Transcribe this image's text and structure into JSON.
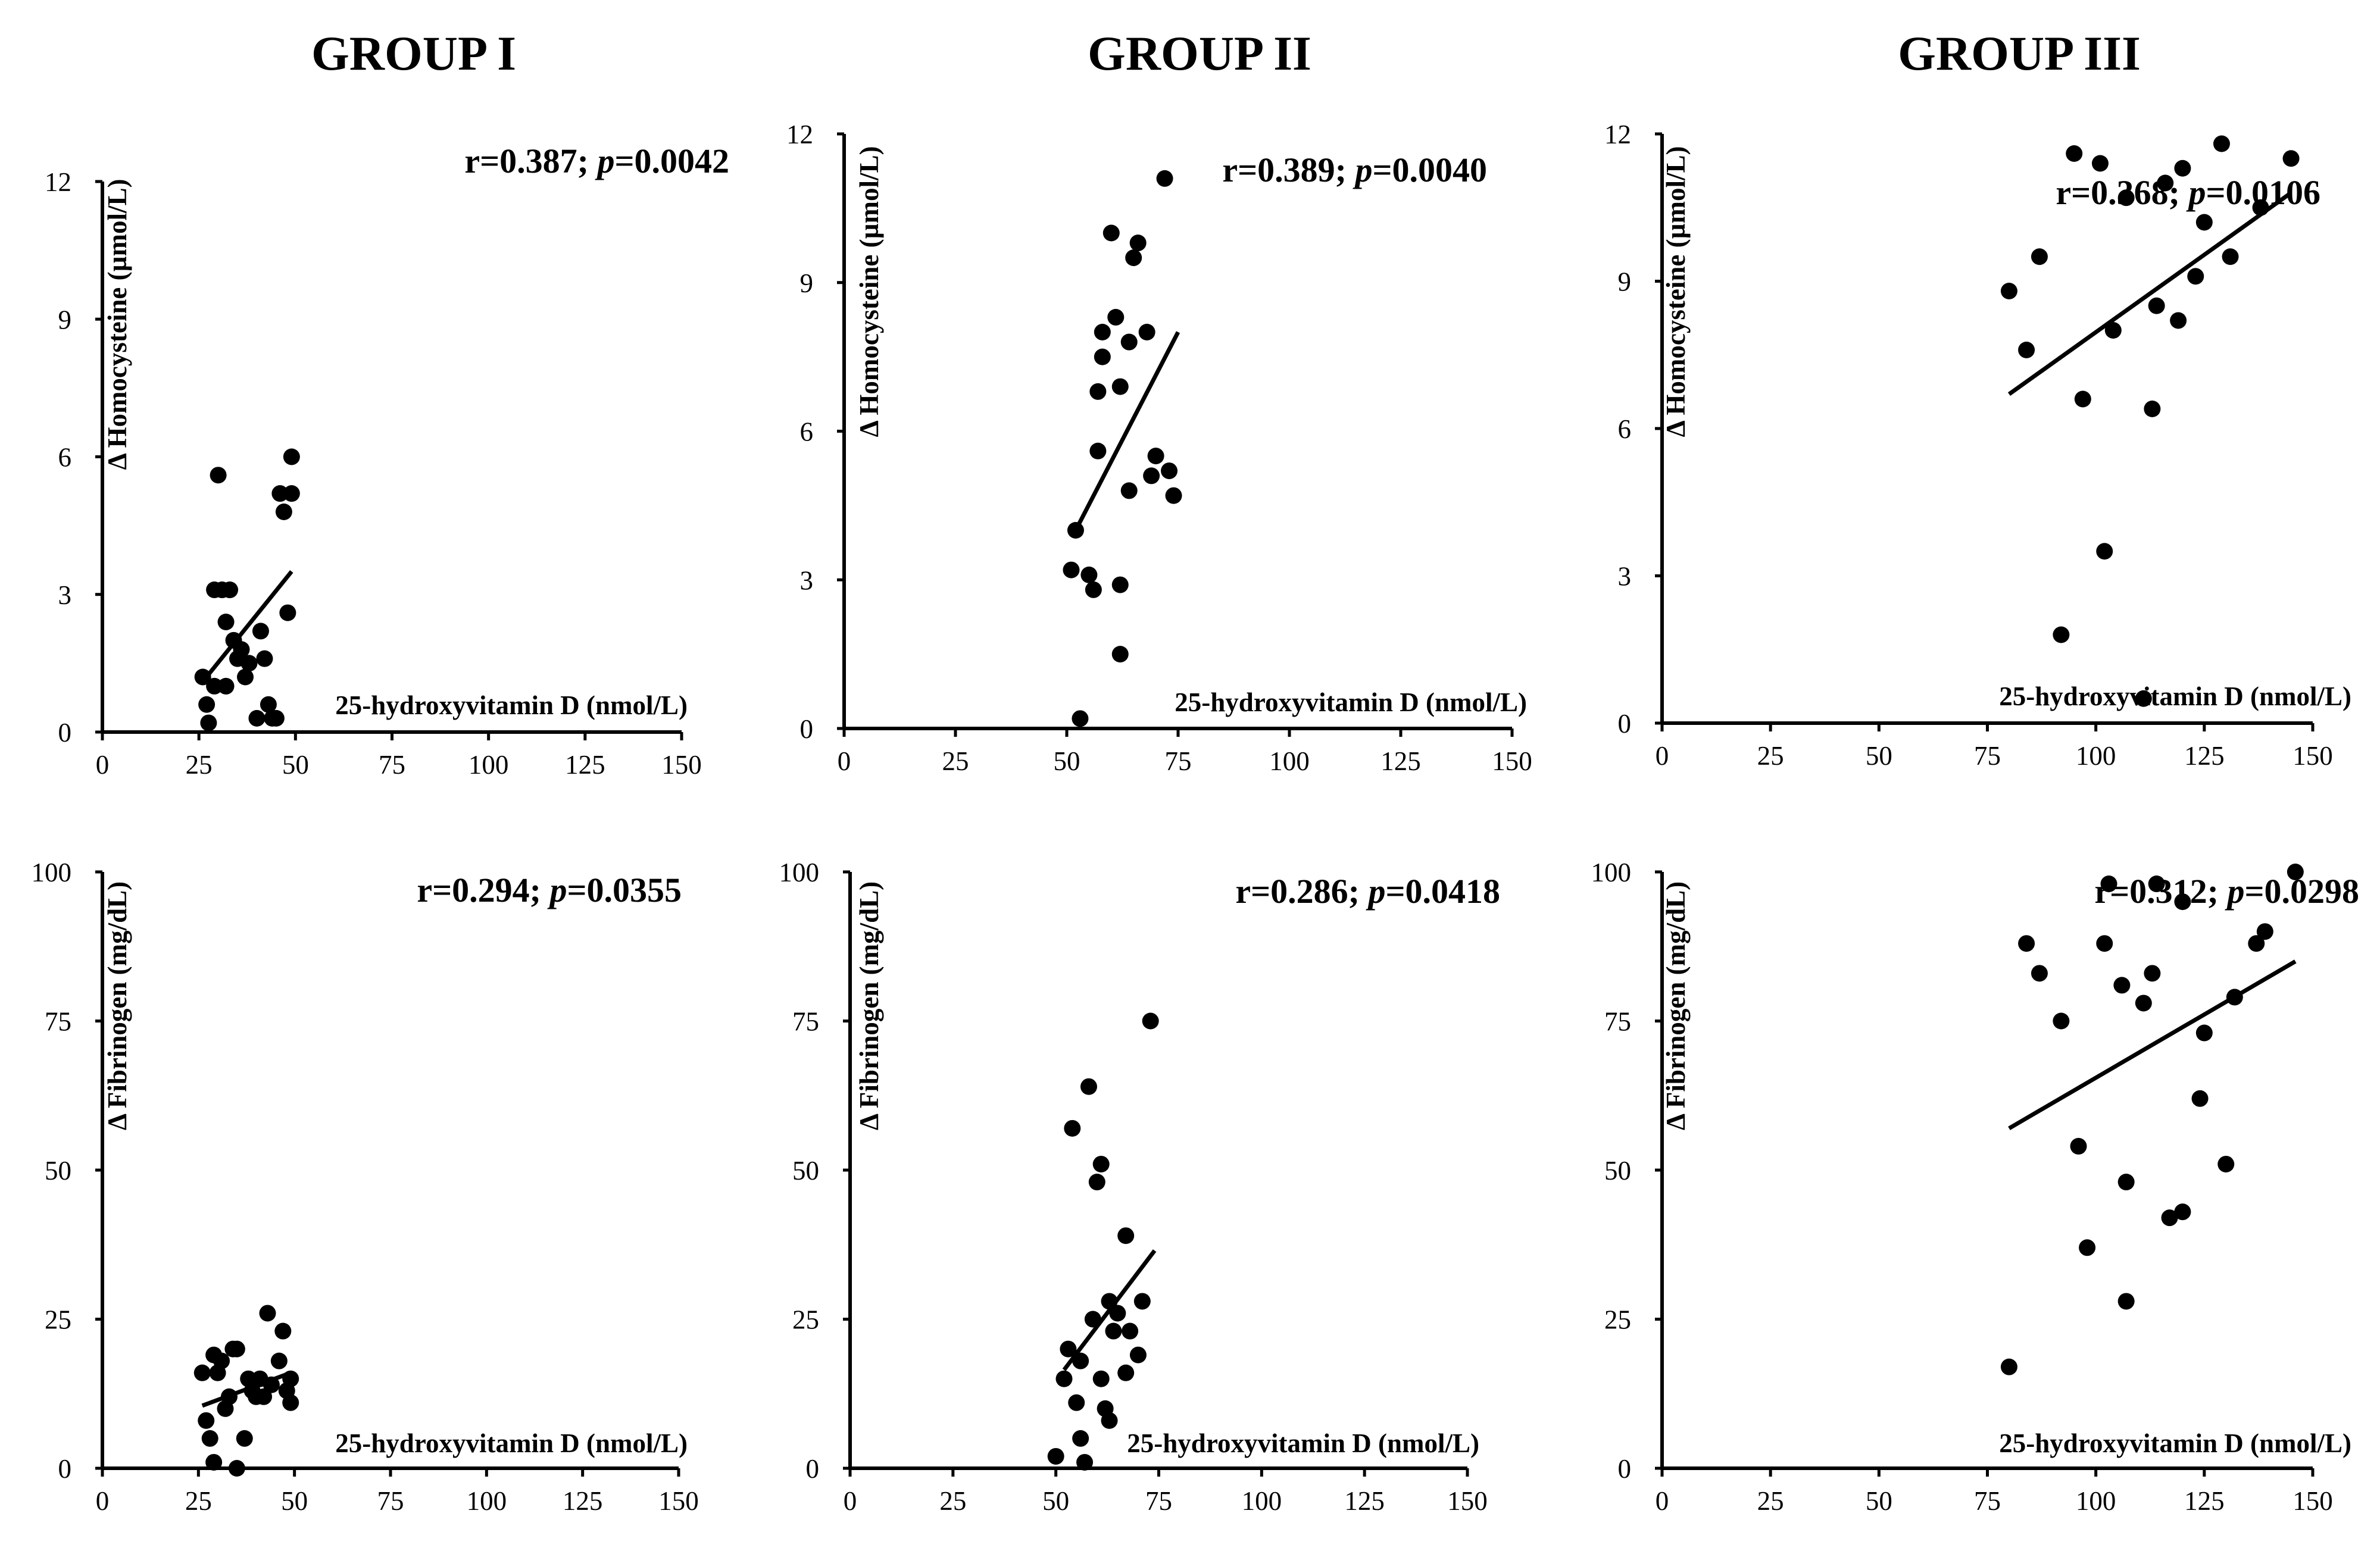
{
  "figure": {
    "group_titles": [
      "GROUP I",
      "GROUP II",
      "GROUP III"
    ],
    "colors": {
      "points": "#000000",
      "axes": "#000000",
      "background": "#ffffff"
    }
  },
  "chart_data": [
    {
      "id": "g1-homocysteine",
      "type": "scatter",
      "title": "GROUP I",
      "xlabel": "25-hydroxyvitamin D (nmol/L)",
      "ylabel": "Δ  Homocysteine (µmol/L)",
      "xlim": [
        0,
        150
      ],
      "ylim": [
        0,
        12
      ],
      "xticks": [
        "0",
        "25",
        "50",
        "75",
        "100",
        "125",
        "150"
      ],
      "yticks": [
        "0",
        "3",
        "6",
        "9",
        "12"
      ],
      "annotation": {
        "r": "r=0.387;",
        "p_label": "p",
        "p_value": "=0.0042"
      },
      "trendline": {
        "x": [
          26,
          49
        ],
        "y": [
          1.1,
          3.5
        ]
      },
      "points": [
        [
          26,
          1.2
        ],
        [
          27,
          0.6
        ],
        [
          27.5,
          0.2
        ],
        [
          29,
          1.0
        ],
        [
          29,
          3.1
        ],
        [
          30,
          5.6
        ],
        [
          31,
          3.1
        ],
        [
          32,
          2.4
        ],
        [
          32,
          1.0
        ],
        [
          33,
          3.1
        ],
        [
          34,
          2.0
        ],
        [
          35,
          1.6
        ],
        [
          36,
          1.8
        ],
        [
          37,
          1.2
        ],
        [
          38,
          1.5
        ],
        [
          40,
          0.3
        ],
        [
          41,
          2.2
        ],
        [
          42,
          1.6
        ],
        [
          43,
          0.6
        ],
        [
          44,
          0.3
        ],
        [
          45,
          0.3
        ],
        [
          46,
          5.2
        ],
        [
          47,
          4.8
        ],
        [
          48,
          2.6
        ],
        [
          49,
          5.2
        ],
        [
          49,
          6.0
        ]
      ]
    },
    {
      "id": "g2-homocysteine",
      "type": "scatter",
      "title": "GROUP II",
      "xlabel": "25-hydroxyvitamin D (nmol/L)",
      "ylabel": "Δ  Homocysteine (µmol/L)",
      "xlim": [
        0,
        150
      ],
      "ylim": [
        0,
        12
      ],
      "xticks": [
        "0",
        "25",
        "50",
        "75",
        "100",
        "125",
        "150"
      ],
      "yticks": [
        "0",
        "3",
        "6",
        "9",
        "12"
      ],
      "annotation": {
        "r": "r=0.389;",
        "p_label": "p",
        "p_value": "=0.0040"
      },
      "trendline": {
        "x": [
          52,
          75
        ],
        "y": [
          4.0,
          8.0
        ]
      },
      "points": [
        [
          51,
          3.2
        ],
        [
          52,
          4.0
        ],
        [
          53,
          0.2
        ],
        [
          55,
          3.1
        ],
        [
          56,
          2.8
        ],
        [
          57,
          5.6
        ],
        [
          57,
          6.8
        ],
        [
          58,
          7.5
        ],
        [
          58,
          8.0
        ],
        [
          60,
          10.0
        ],
        [
          61,
          8.3
        ],
        [
          62,
          6.9
        ],
        [
          62,
          1.5
        ],
        [
          62,
          2.9
        ],
        [
          64,
          7.8
        ],
        [
          64,
          4.8
        ],
        [
          65,
          9.5
        ],
        [
          66,
          9.8
        ],
        [
          68,
          8.0
        ],
        [
          69,
          5.1
        ],
        [
          70,
          5.5
        ],
        [
          72,
          11.1
        ],
        [
          73,
          5.2
        ],
        [
          74,
          4.7
        ]
      ]
    },
    {
      "id": "g3-homocysteine",
      "type": "scatter",
      "title": "GROUP III",
      "xlabel": "25-hydroxyvitamin D (nmol/L)",
      "ylabel": "Δ  Homocysteine (µmol/L)",
      "xlim": [
        0,
        150
      ],
      "ylim": [
        0,
        12
      ],
      "xticks": [
        "0",
        "25",
        "50",
        "75",
        "100",
        "125",
        "150"
      ],
      "yticks": [
        "0",
        "3",
        "6",
        "9",
        "12"
      ],
      "annotation": {
        "r": "r=0.368;",
        "p_label": "p",
        "p_value": "=0.0106"
      },
      "trendline": {
        "x": [
          80,
          145
        ],
        "y": [
          6.7,
          10.8
        ]
      },
      "points": [
        [
          80,
          8.8
        ],
        [
          84,
          7.6
        ],
        [
          87,
          9.5
        ],
        [
          92,
          1.8
        ],
        [
          95,
          11.6
        ],
        [
          97,
          6.6
        ],
        [
          101,
          11.4
        ],
        [
          102,
          3.5
        ],
        [
          104,
          8.0
        ],
        [
          107,
          10.7
        ],
        [
          111,
          0.5
        ],
        [
          113,
          6.4
        ],
        [
          114,
          8.5
        ],
        [
          116,
          11.0
        ],
        [
          119,
          8.2
        ],
        [
          120,
          11.3
        ],
        [
          123,
          9.1
        ],
        [
          125,
          10.2
        ],
        [
          129,
          11.8
        ],
        [
          131,
          9.5
        ],
        [
          138,
          10.5
        ],
        [
          145,
          11.5
        ]
      ]
    },
    {
      "id": "g1-fibrinogen",
      "type": "scatter",
      "title": "",
      "xlabel": "25-hydroxyvitamin D (nmol/L)",
      "ylabel": "Δ  Fibrinogen (mg/dL)",
      "xlim": [
        0,
        150
      ],
      "ylim": [
        0,
        100
      ],
      "xticks": [
        "0",
        "25",
        "50",
        "75",
        "100",
        "125",
        "150"
      ],
      "yticks": [
        "0",
        "25",
        "50",
        "75",
        "100"
      ],
      "annotation": {
        "r": "r=0.294;",
        "p_label": "p",
        "p_value": "=0.0355"
      },
      "trendline": {
        "x": [
          26,
          49
        ],
        "y": [
          10.5,
          16.0
        ]
      },
      "points": [
        [
          26,
          16
        ],
        [
          27,
          8
        ],
        [
          28,
          5
        ],
        [
          29,
          19
        ],
        [
          29,
          1
        ],
        [
          30,
          16
        ],
        [
          31,
          18
        ],
        [
          32,
          10
        ],
        [
          33,
          12
        ],
        [
          34,
          20
        ],
        [
          35,
          20
        ],
        [
          35,
          0
        ],
        [
          37,
          5
        ],
        [
          38,
          15
        ],
        [
          39,
          13
        ],
        [
          40,
          12
        ],
        [
          41,
          15
        ],
        [
          42,
          12
        ],
        [
          43,
          26
        ],
        [
          44,
          14
        ],
        [
          46,
          18
        ],
        [
          47,
          23
        ],
        [
          48,
          13
        ],
        [
          49,
          11
        ],
        [
          49,
          15
        ]
      ]
    },
    {
      "id": "g2-fibrinogen",
      "type": "scatter",
      "title": "",
      "xlabel": "25-hydroxyvitamin D (nmol/L)",
      "ylabel": "Δ  Fibrinogen (mg/dL)",
      "xlim": [
        0,
        150
      ],
      "ylim": [
        0,
        100
      ],
      "xticks": [
        "0",
        "25",
        "50",
        "75",
        "100",
        "125",
        "150"
      ],
      "yticks": [
        "0",
        "25",
        "50",
        "75",
        "100"
      ],
      "annotation": {
        "r": "r=0.286;",
        "p_label": "p",
        "p_value": "=0.0418"
      },
      "trendline": {
        "x": [
          52,
          74
        ],
        "y": [
          16.5,
          36.5
        ]
      },
      "points": [
        [
          50,
          2
        ],
        [
          52,
          15
        ],
        [
          53,
          20
        ],
        [
          54,
          57
        ],
        [
          55,
          11
        ],
        [
          56,
          5
        ],
        [
          56,
          18
        ],
        [
          57,
          1
        ],
        [
          58,
          64
        ],
        [
          59,
          25
        ],
        [
          60,
          48
        ],
        [
          61,
          51
        ],
        [
          61,
          15
        ],
        [
          62,
          10
        ],
        [
          63,
          8
        ],
        [
          63,
          28
        ],
        [
          64,
          23
        ],
        [
          65,
          26
        ],
        [
          67,
          39
        ],
        [
          67,
          16
        ],
        [
          68,
          23
        ],
        [
          70,
          19
        ],
        [
          71,
          28
        ],
        [
          73,
          75
        ]
      ]
    },
    {
      "id": "g3-fibrinogen",
      "type": "scatter",
      "title": "",
      "xlabel": "25-hydroxyvitamin D (nmol/L)",
      "ylabel": "Δ  Fibrinogen (mg/dL)",
      "xlim": [
        0,
        150
      ],
      "ylim": [
        0,
        100
      ],
      "xticks": [
        "0",
        "25",
        "50",
        "75",
        "100",
        "125",
        "150"
      ],
      "yticks": [
        "0",
        "25",
        "50",
        "75",
        "100"
      ],
      "annotation": {
        "r": "r=0.312;",
        "p_label": "p",
        "p_value": "=0.0298"
      },
      "trendline": {
        "x": [
          80,
          146
        ],
        "y": [
          57,
          85
        ]
      },
      "points": [
        [
          80,
          17
        ],
        [
          84,
          88
        ],
        [
          87,
          83
        ],
        [
          92,
          75
        ],
        [
          96,
          54
        ],
        [
          98,
          37
        ],
        [
          102,
          88
        ],
        [
          103,
          98
        ],
        [
          106,
          81
        ],
        [
          107,
          28
        ],
        [
          107,
          48
        ],
        [
          111,
          78
        ],
        [
          113,
          83
        ],
        [
          114,
          98
        ],
        [
          117,
          42
        ],
        [
          120,
          95
        ],
        [
          120,
          43
        ],
        [
          124,
          62
        ],
        [
          125,
          73
        ],
        [
          130,
          51
        ],
        [
          132,
          79
        ],
        [
          137,
          88
        ],
        [
          139,
          90
        ],
        [
          146,
          100
        ]
      ]
    }
  ]
}
